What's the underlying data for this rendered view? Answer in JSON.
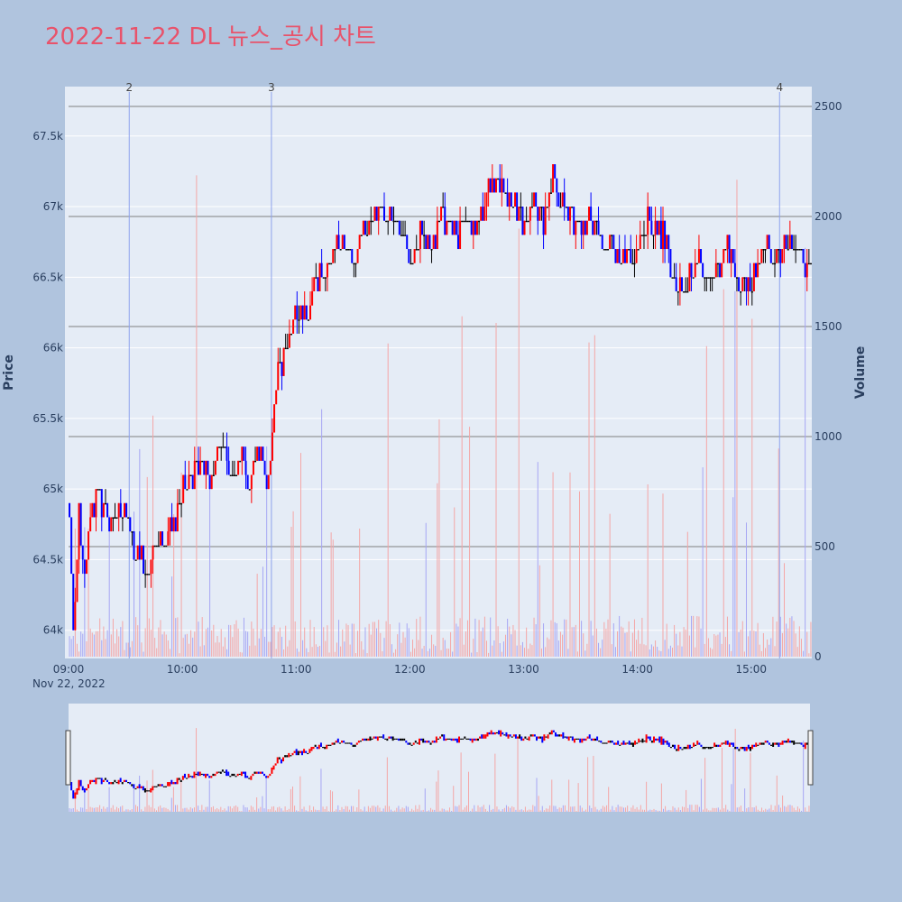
{
  "colors": {
    "page_background": "#b0c4de",
    "plot_background": "#e5ecf6",
    "title": "#e8536b",
    "up": "#ff0000",
    "down": "#0000ff",
    "neutral": "#000000",
    "up_volume": "#f4a6a6",
    "down_volume": "#a6a6f4",
    "grid": "#ffffff",
    "reference_line": "#808080",
    "news_line": "#8ea2ee",
    "tick_text": "#2a3f5f"
  },
  "chart_data": {
    "type": "candlestick",
    "title": "2022-11-22 DL 뉴스_공시 차트",
    "date_label": "Nov 22, 2022",
    "y_title": "Price",
    "y2_title": "Volume",
    "x_ticks": [
      "09:00",
      "10:00",
      "11:00",
      "12:00",
      "13:00",
      "14:00",
      "15:00"
    ],
    "x_range": [
      "09:00",
      "15:32"
    ],
    "y_ticks": [
      "64k",
      "64.5k",
      "65k",
      "65.5k",
      "66k",
      "66.5k",
      "67k",
      "67.5k"
    ],
    "y_tick_values": [
      64000,
      64500,
      65000,
      65500,
      66000,
      66500,
      67000,
      67500
    ],
    "ylim": [
      63800,
      67850
    ],
    "y2_ticks": [
      "0",
      "500",
      "1000",
      "1500",
      "2000",
      "2500"
    ],
    "y2_tick_values": [
      0,
      500,
      1000,
      1500,
      2000,
      2500
    ],
    "y2lim": [
      0,
      2590
    ],
    "reference_lines": [
      2500,
      2000,
      1500,
      1000,
      500
    ],
    "news_markers": [
      {
        "time": "09:32",
        "label": "2"
      },
      {
        "time": "10:47",
        "label": "3"
      },
      {
        "time": "15:15",
        "label": "4"
      }
    ],
    "price_keypoints": [
      [
        "09:00",
        64900
      ],
      [
        "09:02",
        64000
      ],
      [
        "09:05",
        64800
      ],
      [
        "09:08",
        64400
      ],
      [
        "09:10",
        64800
      ],
      [
        "09:15",
        64900
      ],
      [
        "09:22",
        64700
      ],
      [
        "09:25",
        64900
      ],
      [
        "09:30",
        64800
      ],
      [
        "09:34",
        64600
      ],
      [
        "09:38",
        64500
      ],
      [
        "09:42",
        64400
      ],
      [
        "09:45",
        64600
      ],
      [
        "09:50",
        64700
      ],
      [
        "09:55",
        64700
      ],
      [
        "10:00",
        65000
      ],
      [
        "10:05",
        65100
      ],
      [
        "10:10",
        65200
      ],
      [
        "10:15",
        65100
      ],
      [
        "10:20",
        65300
      ],
      [
        "10:25",
        65100
      ],
      [
        "10:30",
        65200
      ],
      [
        "10:35",
        65100
      ],
      [
        "10:40",
        65200
      ],
      [
        "10:45",
        65100
      ],
      [
        "10:48",
        65600
      ],
      [
        "10:50",
        65800
      ],
      [
        "10:55",
        66000
      ],
      [
        "11:00",
        66300
      ],
      [
        "11:05",
        66200
      ],
      [
        "11:10",
        66500
      ],
      [
        "11:15",
        66600
      ],
      [
        "11:20",
        66700
      ],
      [
        "11:25",
        66800
      ],
      [
        "11:30",
        66600
      ],
      [
        "11:35",
        66800
      ],
      [
        "11:40",
        66900
      ],
      [
        "11:45",
        67000
      ],
      [
        "11:50",
        66900
      ],
      [
        "11:55",
        66800
      ],
      [
        "12:00",
        66600
      ],
      [
        "12:05",
        66800
      ],
      [
        "12:10",
        66700
      ],
      [
        "12:15",
        66900
      ],
      [
        "12:20",
        66900
      ],
      [
        "12:25",
        66800
      ],
      [
        "12:30",
        66900
      ],
      [
        "12:35",
        66800
      ],
      [
        "12:40",
        67100
      ],
      [
        "12:45",
        67200
      ],
      [
        "12:50",
        67100
      ],
      [
        "12:55",
        67000
      ],
      [
        "13:00",
        66900
      ],
      [
        "13:05",
        67000
      ],
      [
        "13:10",
        66900
      ],
      [
        "13:15",
        67200
      ],
      [
        "13:20",
        67000
      ],
      [
        "13:25",
        66900
      ],
      [
        "13:30",
        66800
      ],
      [
        "13:35",
        66900
      ],
      [
        "13:40",
        66800
      ],
      [
        "13:45",
        66700
      ],
      [
        "13:50",
        66700
      ],
      [
        "13:55",
        66600
      ],
      [
        "14:00",
        66700
      ],
      [
        "14:05",
        66900
      ],
      [
        "14:10",
        66800
      ],
      [
        "14:15",
        66800
      ],
      [
        "14:18",
        66500
      ],
      [
        "14:22",
        66400
      ],
      [
        "14:27",
        66500
      ],
      [
        "14:32",
        66600
      ],
      [
        "14:37",
        66500
      ],
      [
        "14:42",
        66600
      ],
      [
        "14:47",
        66700
      ],
      [
        "14:52",
        66500
      ],
      [
        "14:57",
        66400
      ],
      [
        "15:02",
        66500
      ],
      [
        "15:07",
        66700
      ],
      [
        "15:12",
        66600
      ],
      [
        "15:17",
        66700
      ],
      [
        "15:22",
        66800
      ],
      [
        "15:27",
        66600
      ],
      [
        "15:30",
        66500
      ],
      [
        "15:32",
        66600
      ]
    ]
  }
}
